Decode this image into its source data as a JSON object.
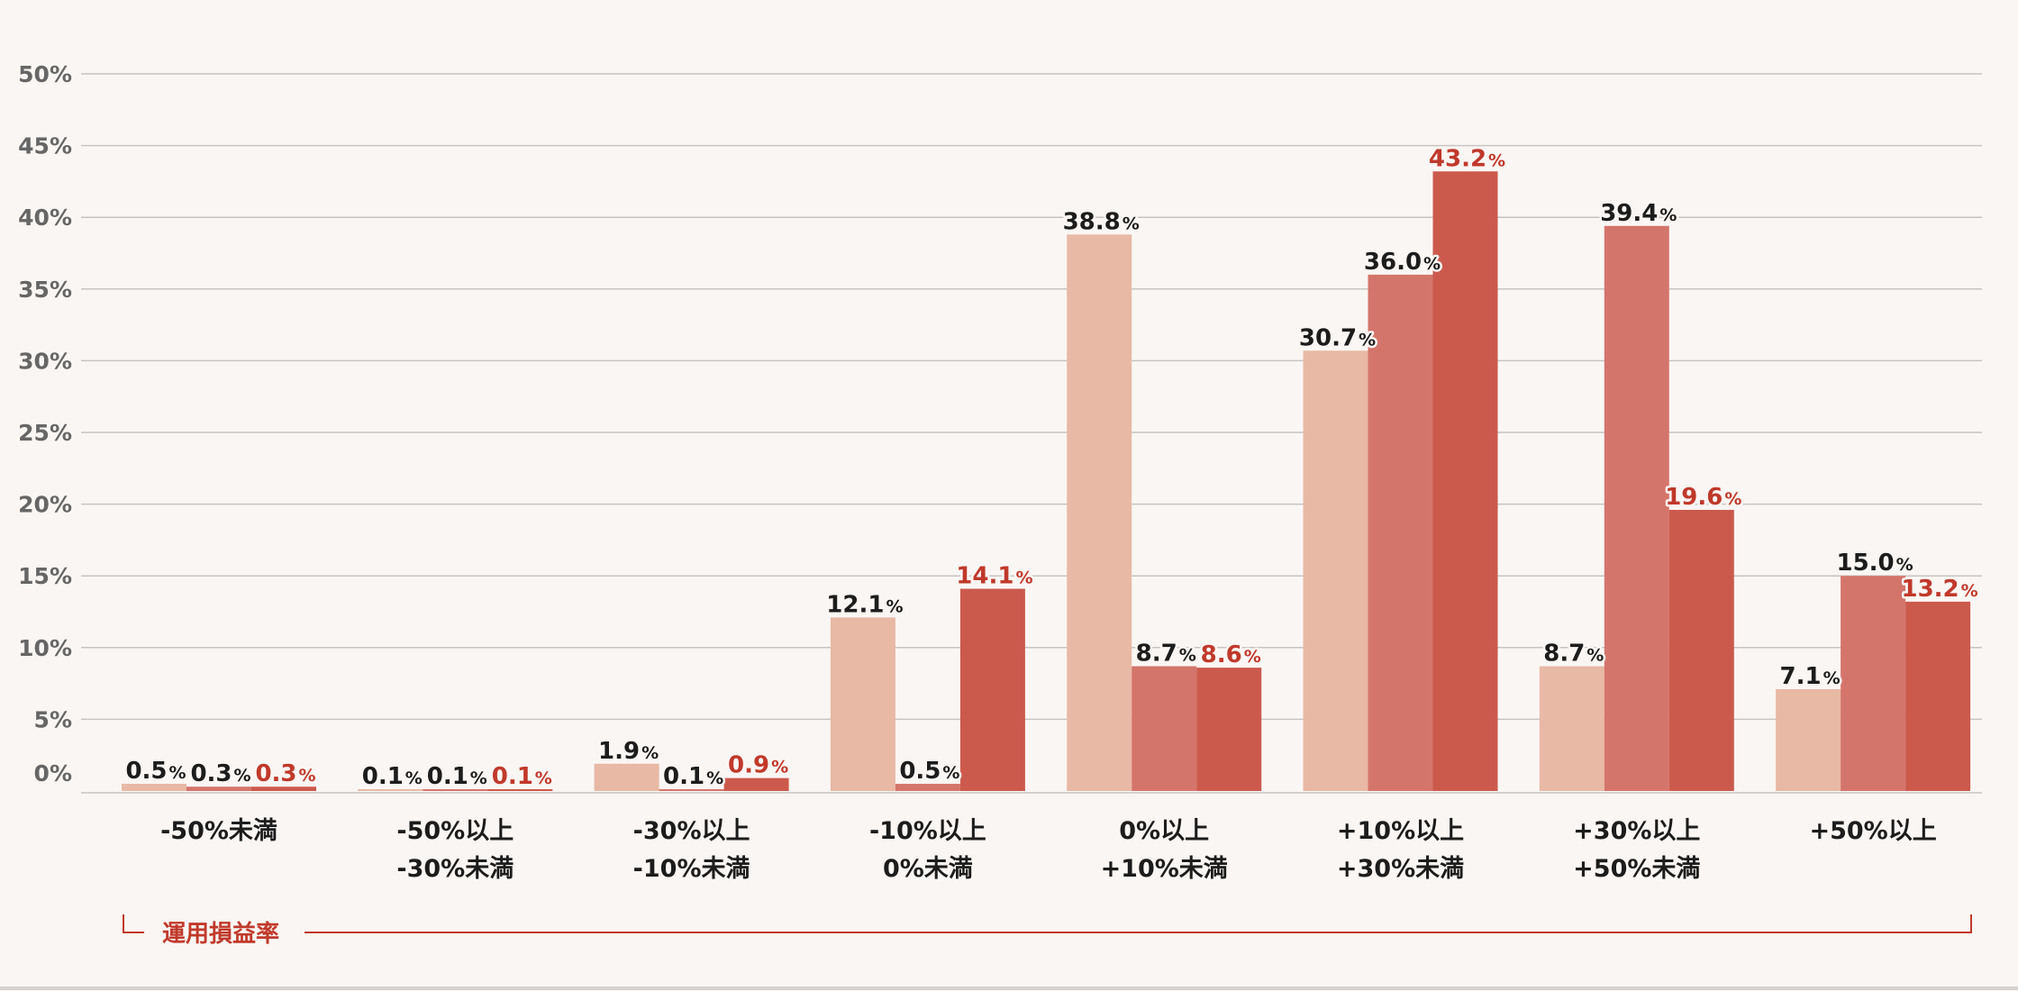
{
  "chart_data": {
    "type": "bar",
    "title": "",
    "xlabel": "運用損益率",
    "ylabel": "",
    "ylim": [
      0,
      50
    ],
    "yticks": [
      "0%",
      "5%",
      "10%",
      "15%",
      "20%",
      "25%",
      "30%",
      "35%",
      "40%",
      "45%",
      "50%"
    ],
    "grid": true,
    "legend": "none",
    "categories": [
      [
        "-50%未満"
      ],
      [
        "-50%以上",
        "-30%未満"
      ],
      [
        "-30%以上",
        "-10%未満"
      ],
      [
        "-10%以上",
        "0%未満"
      ],
      [
        "0%以上",
        "+10%未満"
      ],
      [
        "+10%以上",
        "+30%未満"
      ],
      [
        "+30%以上",
        "+50%未満"
      ],
      [
        "+50%以上"
      ]
    ],
    "series": [
      {
        "values": [
          0.5,
          0.1,
          1.9,
          12.1,
          38.8,
          30.7,
          8.7,
          7.1
        ],
        "labels": [
          "0.5",
          "0.1",
          "1.9",
          "12.1",
          "38.8",
          "30.7",
          "8.7",
          "7.1"
        ],
        "color": "#e8b9a5",
        "label_color": "#1c1c1c"
      },
      {
        "values": [
          0.3,
          0.1,
          0.1,
          0.5,
          8.7,
          36.0,
          39.4,
          15.0
        ],
        "labels": [
          "0.3",
          "0.1",
          "0.1",
          "0.5",
          "8.7",
          "36.0",
          "39.4",
          "15.0"
        ],
        "color": "#d4756b",
        "label_color": "#1c1c1c"
      },
      {
        "values": [
          0.3,
          0.1,
          0.9,
          14.1,
          8.6,
          43.2,
          19.6,
          13.2
        ],
        "labels": [
          "0.3",
          "0.1",
          "0.9",
          "14.1",
          "8.6",
          "43.2",
          "19.6",
          "13.2"
        ],
        "color": "#cb5a4d",
        "label_color": "#c0392b"
      }
    ],
    "unit_suffix": "%",
    "axis_title_color": "#c0392b"
  }
}
